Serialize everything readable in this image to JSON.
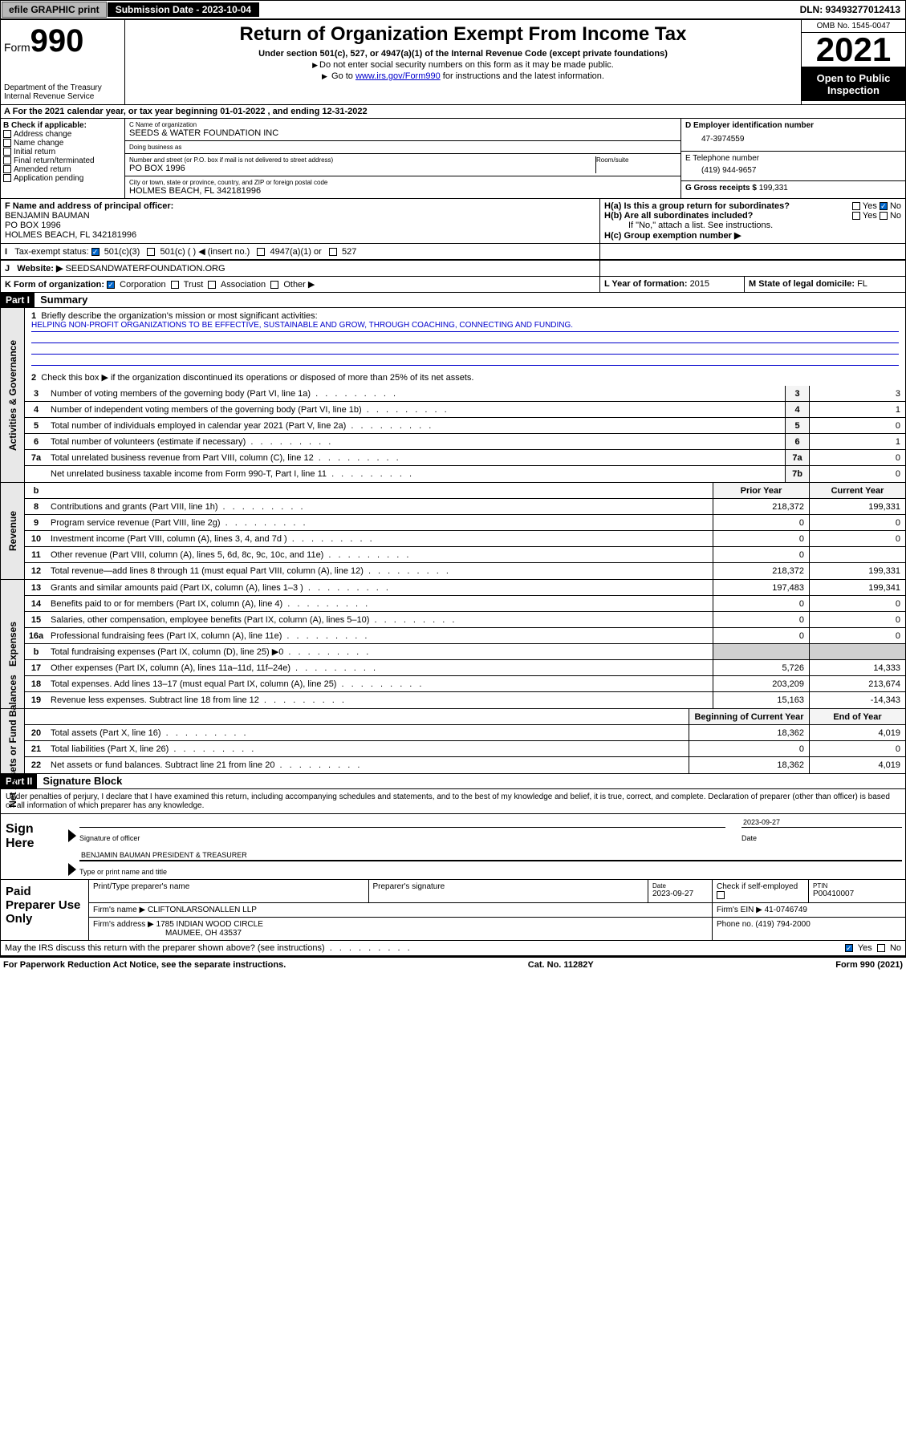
{
  "top": {
    "efile": "efile GRAPHIC print",
    "sub_label": "Submission Date - ",
    "sub_date": "2023-10-04",
    "dln": "DLN: 93493277012413"
  },
  "header": {
    "form_prefix": "Form",
    "form_number": "990",
    "dept": "Department of the Treasury",
    "irs": "Internal Revenue Service",
    "title": "Return of Organization Exempt From Income Tax",
    "sub1": "Under section 501(c), 527, or 4947(a)(1) of the Internal Revenue Code (except private foundations)",
    "sub2": "Do not enter social security numbers on this form as it may be made public.",
    "sub3_pre": "Go to ",
    "sub3_link": "www.irs.gov/Form990",
    "sub3_post": " for instructions and the latest information.",
    "omb": "OMB No. 1545-0047",
    "year": "2021",
    "open": "Open to Public Inspection"
  },
  "rowA": {
    "text": "For the 2021 calendar year, or tax year beginning 01-01-2022   , and ending 12-31-2022"
  },
  "colB": {
    "title": "B Check if applicable:",
    "items": [
      "Address change",
      "Name change",
      "Initial return",
      "Final return/terminated",
      "Amended return",
      "Application pending"
    ]
  },
  "colC": {
    "name_label": "C Name of organization",
    "name": "SEEDS & WATER FOUNDATION INC",
    "dba_label": "Doing business as",
    "dba": "",
    "addr_label": "Number and street (or P.O. box if mail is not delivered to street address)",
    "room_label": "Room/suite",
    "addr": "PO BOX 1996",
    "city_label": "City or town, state or province, country, and ZIP or foreign postal code",
    "city": "HOLMES BEACH, FL  342181996"
  },
  "colD": {
    "ein_label": "D Employer identification number",
    "ein": "47-3974559",
    "tel_label": "E Telephone number",
    "tel": "(419) 944-9657",
    "gross_label": "G Gross receipts $ ",
    "gross": "199,331"
  },
  "rowF": {
    "label": "F Name and address of principal officer:",
    "name": "BENJAMIN BAUMAN",
    "addr1": "PO BOX 1996",
    "addr2": "HOLMES BEACH, FL  342181996"
  },
  "rowH": {
    "ha": "H(a)  Is this a group return for subordinates?",
    "hb": "H(b)  Are all subordinates included?",
    "hb_note": "If \"No,\" attach a list. See instructions.",
    "hc": "H(c)  Group exemption number ▶",
    "yes": "Yes",
    "no": "No"
  },
  "rowI": {
    "label": "Tax-exempt status:",
    "opts": [
      "501(c)(3)",
      "501(c) (  ) ◀ (insert no.)",
      "4947(a)(1) or",
      "527"
    ]
  },
  "rowJ": {
    "label": "Website: ▶",
    "url": "SEEDSANDWATERFOUNDATION.ORG"
  },
  "rowK": {
    "label": "K Form of organization:",
    "opts": [
      "Corporation",
      "Trust",
      "Association",
      "Other ▶"
    ]
  },
  "rowL": {
    "label": "L Year of formation: ",
    "val": "2015"
  },
  "rowM": {
    "label": "M State of legal domicile: ",
    "val": "FL"
  },
  "part1": {
    "header": "Part I",
    "title": "Summary",
    "l1": "Briefly describe the organization's mission or most significant activities:",
    "mission": "HELPING NON-PROFIT ORGANIZATIONS TO BE EFFECTIVE, SUSTAINABLE AND GROW, THROUGH COACHING, CONNECTING AND FUNDING.",
    "l2": "Check this box ▶        if the organization discontinued its operations or disposed of more than 25% of its net assets.",
    "gov_lines": [
      {
        "n": "3",
        "d": "Number of voting members of the governing body (Part VI, line 1a)",
        "b": "3",
        "v": "3"
      },
      {
        "n": "4",
        "d": "Number of independent voting members of the governing body (Part VI, line 1b)",
        "b": "4",
        "v": "1"
      },
      {
        "n": "5",
        "d": "Total number of individuals employed in calendar year 2021 (Part V, line 2a)",
        "b": "5",
        "v": "0"
      },
      {
        "n": "6",
        "d": "Total number of volunteers (estimate if necessary)",
        "b": "6",
        "v": "1"
      },
      {
        "n": "7a",
        "d": "Total unrelated business revenue from Part VIII, column (C), line 12",
        "b": "7a",
        "v": "0"
      },
      {
        "n": "",
        "d": "Net unrelated business taxable income from Form 990-T, Part I, line 11",
        "b": "7b",
        "v": "0"
      }
    ],
    "col_prior": "Prior Year",
    "col_current": "Current Year",
    "rev_lines": [
      {
        "n": "8",
        "d": "Contributions and grants (Part VIII, line 1h)",
        "p": "218,372",
        "c": "199,331"
      },
      {
        "n": "9",
        "d": "Program service revenue (Part VIII, line 2g)",
        "p": "0",
        "c": "0"
      },
      {
        "n": "10",
        "d": "Investment income (Part VIII, column (A), lines 3, 4, and 7d )",
        "p": "0",
        "c": "0"
      },
      {
        "n": "11",
        "d": "Other revenue (Part VIII, column (A), lines 5, 6d, 8c, 9c, 10c, and 11e)",
        "p": "0",
        "c": ""
      },
      {
        "n": "12",
        "d": "Total revenue—add lines 8 through 11 (must equal Part VIII, column (A), line 12)",
        "p": "218,372",
        "c": "199,331"
      }
    ],
    "exp_lines": [
      {
        "n": "13",
        "d": "Grants and similar amounts paid (Part IX, column (A), lines 1–3 )",
        "p": "197,483",
        "c": "199,341"
      },
      {
        "n": "14",
        "d": "Benefits paid to or for members (Part IX, column (A), line 4)",
        "p": "0",
        "c": "0"
      },
      {
        "n": "15",
        "d": "Salaries, other compensation, employee benefits (Part IX, column (A), lines 5–10)",
        "p": "0",
        "c": "0"
      },
      {
        "n": "16a",
        "d": "Professional fundraising fees (Part IX, column (A), line 11e)",
        "p": "0",
        "c": "0"
      },
      {
        "n": "b",
        "d": "Total fundraising expenses (Part IX, column (D), line 25) ▶0",
        "p": "",
        "c": "",
        "shaded": true
      },
      {
        "n": "17",
        "d": "Other expenses (Part IX, column (A), lines 11a–11d, 11f–24e)",
        "p": "5,726",
        "c": "14,333"
      },
      {
        "n": "18",
        "d": "Total expenses. Add lines 13–17 (must equal Part IX, column (A), line 25)",
        "p": "203,209",
        "c": "213,674"
      },
      {
        "n": "19",
        "d": "Revenue less expenses. Subtract line 18 from line 12",
        "p": "15,163",
        "c": "-14,343"
      }
    ],
    "col_begin": "Beginning of Current Year",
    "col_end": "End of Year",
    "net_lines": [
      {
        "n": "20",
        "d": "Total assets (Part X, line 16)",
        "p": "18,362",
        "c": "4,019"
      },
      {
        "n": "21",
        "d": "Total liabilities (Part X, line 26)",
        "p": "0",
        "c": "0"
      },
      {
        "n": "22",
        "d": "Net assets or fund balances. Subtract line 21 from line 20",
        "p": "18,362",
        "c": "4,019"
      }
    ],
    "side_gov": "Activities & Governance",
    "side_rev": "Revenue",
    "side_exp": "Expenses",
    "side_net": "Net Assets or Fund Balances"
  },
  "part2": {
    "header": "Part II",
    "title": "Signature Block",
    "perjury": "Under penalties of perjury, I declare that I have examined this return, including accompanying schedules and statements, and to the best of my knowledge and belief, it is true, correct, and complete. Declaration of preparer (other than officer) is based on all information of which preparer has any knowledge.",
    "sign_here": "Sign Here",
    "sig_officer": "Signature of officer",
    "date_label": "Date",
    "date": "2023-09-27",
    "officer_name": "BENJAMIN BAUMAN  PRESIDENT & TREASURER",
    "type_name": "Type or print name and title",
    "paid": "Paid Preparer Use Only",
    "prep_name": "Print/Type preparer's name",
    "prep_sig": "Preparer's signature",
    "prep_date": "2023-09-27",
    "check_self": "Check          if self-employed",
    "ptin_label": "PTIN",
    "ptin": "P00410007",
    "firm_name_label": "Firm's name     ▶",
    "firm_name": "CLIFTONLARSONALLEN LLP",
    "firm_ein_label": "Firm's EIN ▶",
    "firm_ein": "41-0746749",
    "firm_addr_label": "Firm's address ▶",
    "firm_addr1": "1785 INDIAN WOOD CIRCLE",
    "firm_addr2": "MAUMEE, OH  43537",
    "phone_label": "Phone no. ",
    "phone": "(419) 794-2000",
    "discuss": "May the IRS discuss this return with the preparer shown above? (see instructions)",
    "yes": "Yes",
    "no": "No"
  },
  "footer": {
    "left": "For Paperwork Reduction Act Notice, see the separate instructions.",
    "mid": "Cat. No. 11282Y",
    "right": "Form 990 (2021)"
  }
}
